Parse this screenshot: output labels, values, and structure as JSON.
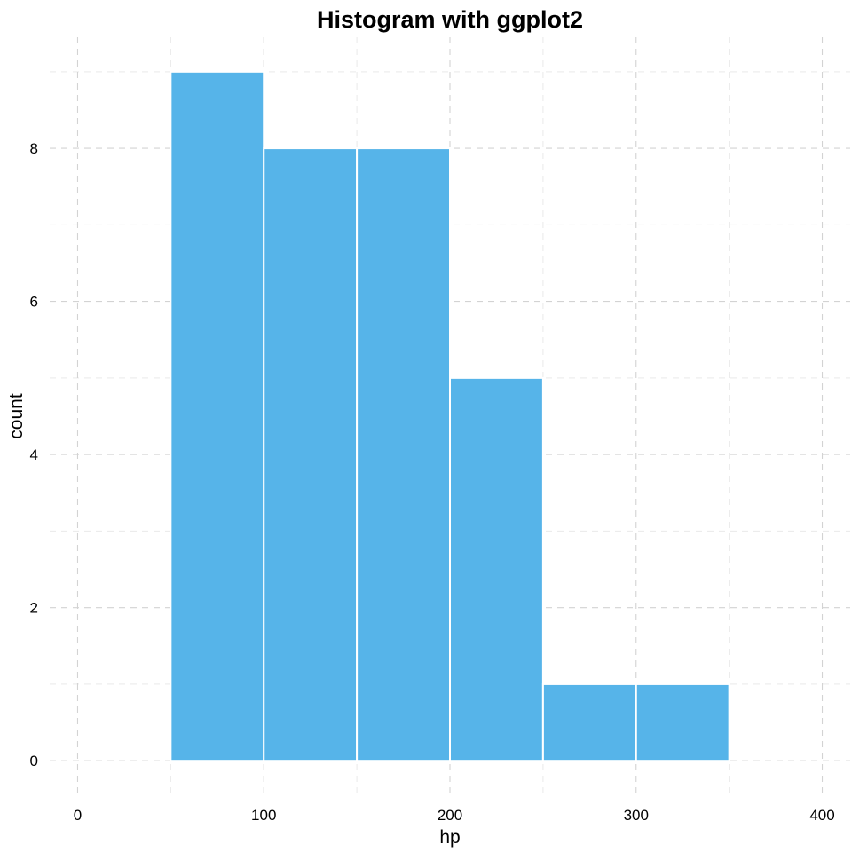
{
  "chart_data": {
    "type": "bar",
    "title": "Histogram with ggplot2",
    "xlabel": "hp",
    "ylabel": "count",
    "bins": [
      {
        "x0": 50,
        "x1": 100,
        "count": 9
      },
      {
        "x0": 100,
        "x1": 150,
        "count": 8
      },
      {
        "x0": 150,
        "x1": 200,
        "count": 8
      },
      {
        "x0": 200,
        "x1": 250,
        "count": 5
      },
      {
        "x0": 250,
        "x1": 300,
        "count": 1
      },
      {
        "x0": 300,
        "x1": 350,
        "count": 1
      }
    ],
    "xlim": [
      -15,
      415
    ],
    "ylim": [
      -0.45,
      9.45
    ],
    "x_ticks": [
      0,
      100,
      200,
      300,
      400
    ],
    "x_minor_ticks": [
      50,
      150,
      250,
      350
    ],
    "y_ticks": [
      0,
      2,
      4,
      6,
      8
    ],
    "y_minor_ticks": [
      1,
      3,
      5,
      7,
      9
    ],
    "grid": true,
    "legend": "none",
    "bar_color": "#56B4E9",
    "bar_outline_color": "#ffffff",
    "grid_color": "#d3d3d3"
  }
}
